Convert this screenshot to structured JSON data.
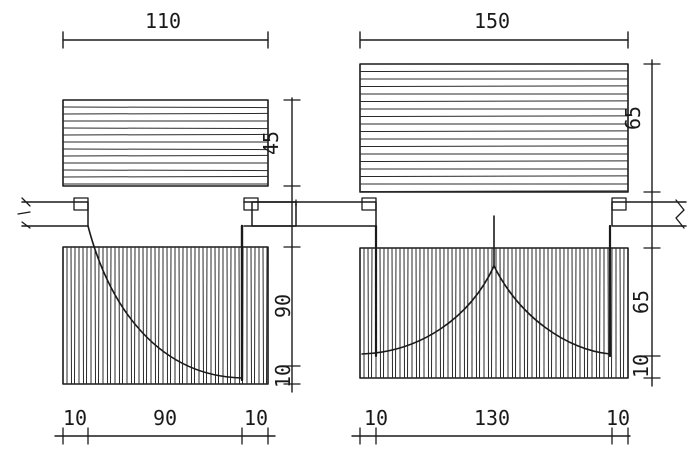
{
  "left_door": {
    "overall_width": "110",
    "upper_clearance": "45",
    "leaf_depth": "90",
    "bottom_gap": "10",
    "bottom_left_gap": "10",
    "bottom_opening": "90",
    "bottom_right_gap": "10"
  },
  "right_door": {
    "overall_width": "150",
    "upper_clearance": "65",
    "leaf_depth": "65",
    "bottom_gap": "10",
    "bottom_left_gap": "10",
    "bottom_opening": "130",
    "bottom_right_gap": "10"
  },
  "colors": {
    "ink": "#1a1a1a",
    "paper": "#ffffff"
  }
}
